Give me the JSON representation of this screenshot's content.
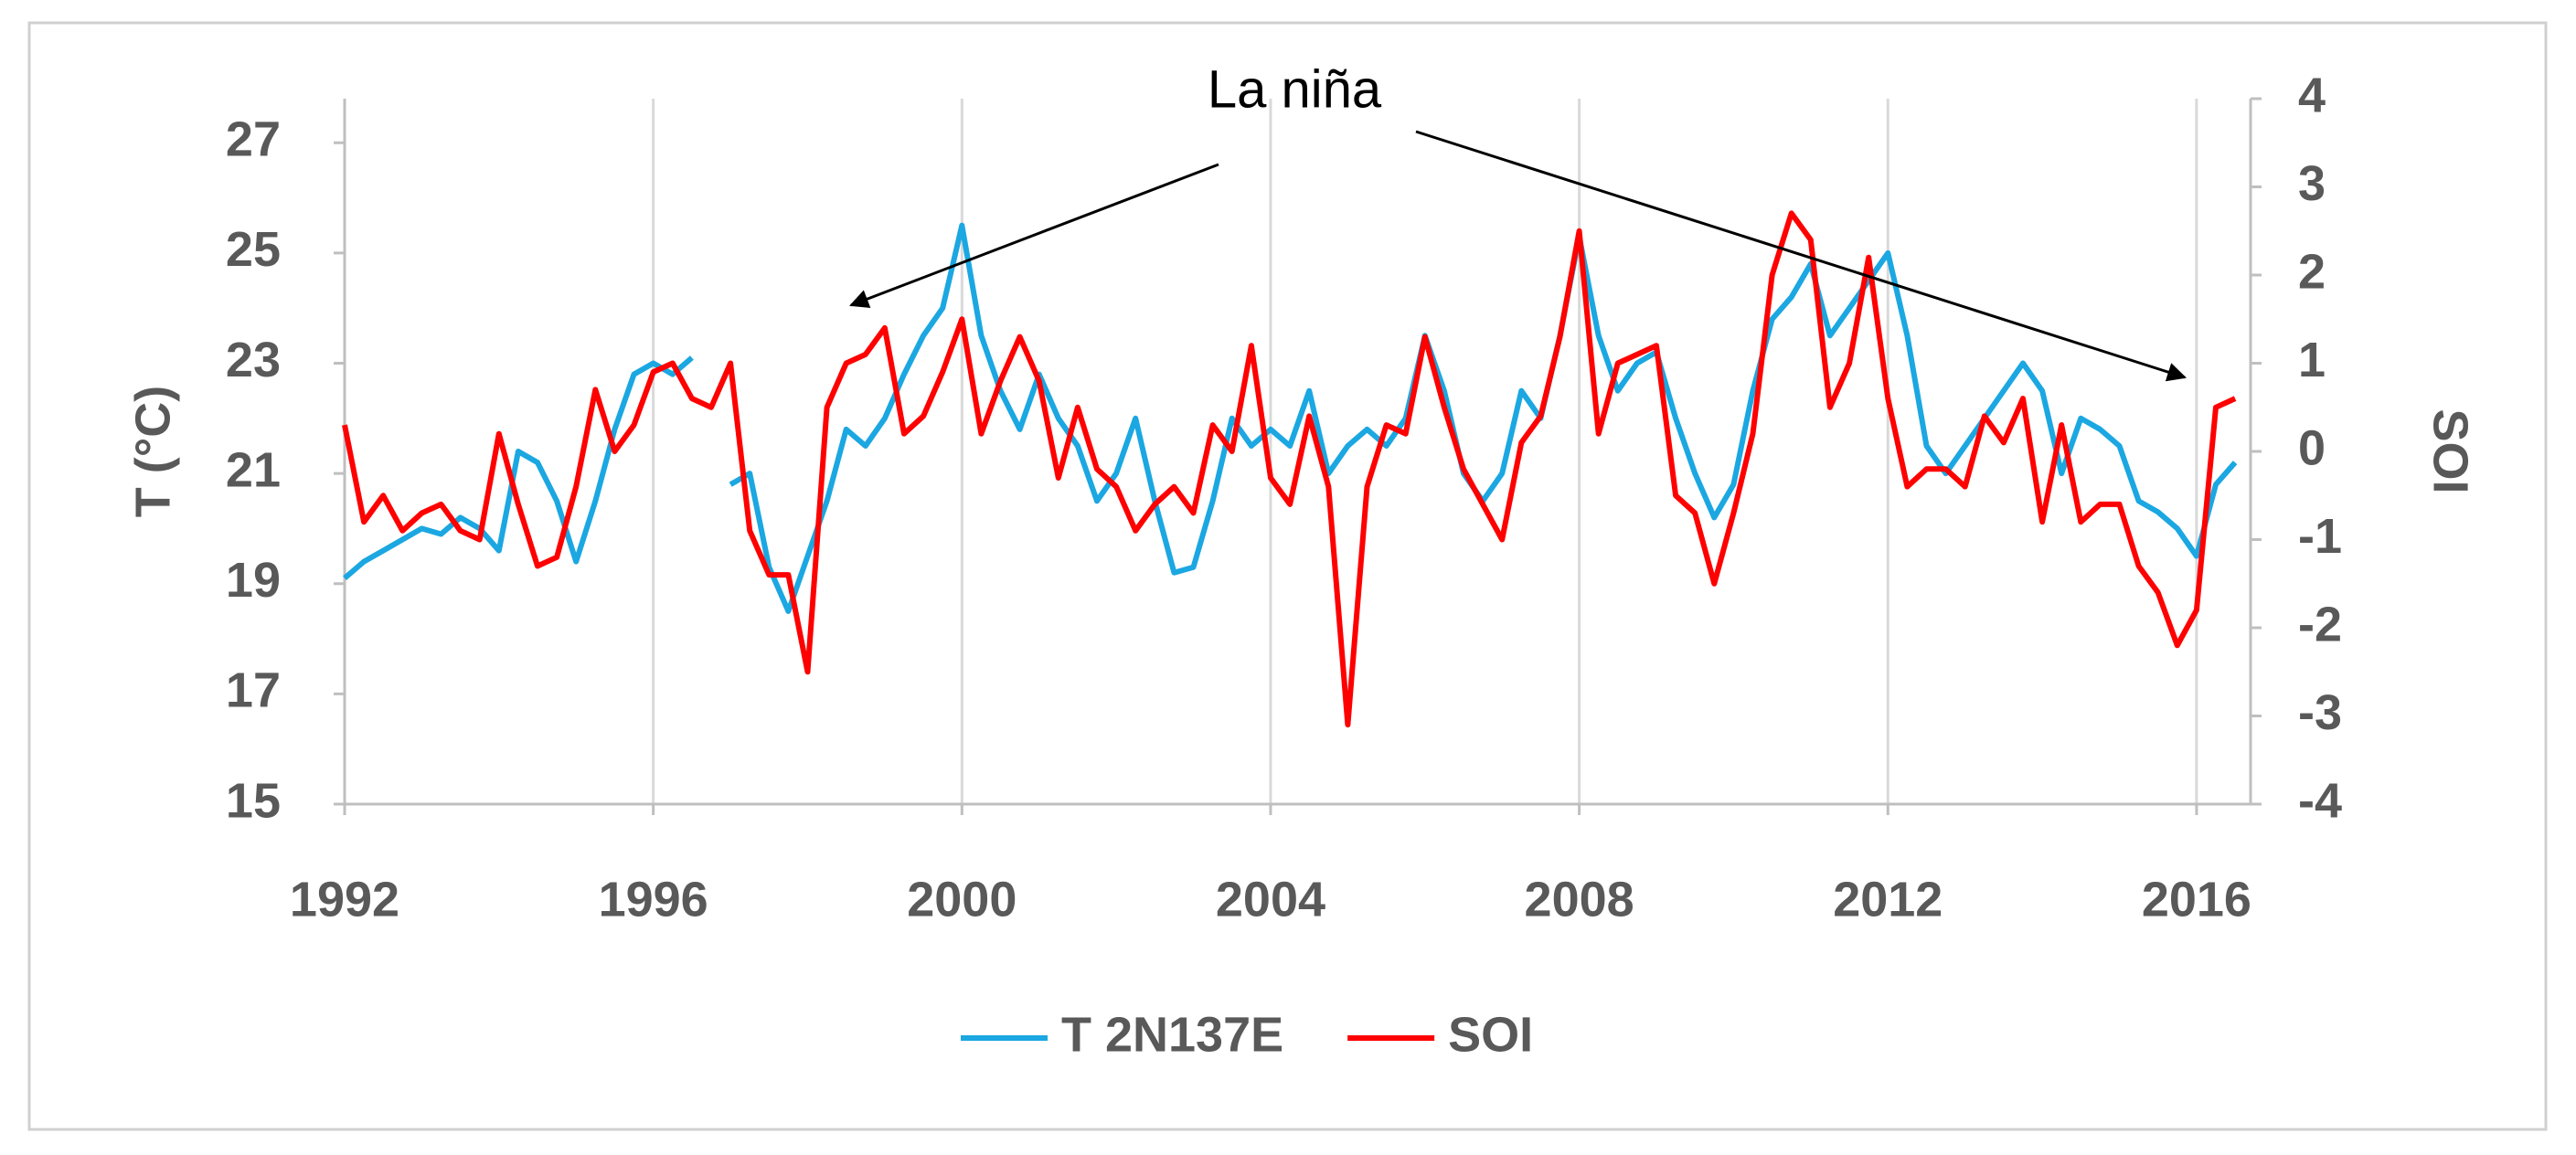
{
  "chart_data": {
    "type": "line",
    "annotation": "La niña",
    "y_label": "T (°C)",
    "y2_label": "SOI",
    "x": [
      1992,
      1992.25,
      1992.5,
      1992.75,
      1993,
      1993.25,
      1993.5,
      1993.75,
      1994,
      1994.25,
      1994.5,
      1994.75,
      1995,
      1995.25,
      1995.5,
      1995.75,
      1996,
      1996.25,
      1996.5,
      1996.75,
      1997,
      1997.25,
      1997.5,
      1997.75,
      1998,
      1998.25,
      1998.5,
      1998.75,
      1999,
      1999.25,
      1999.5,
      1999.75,
      2000,
      2000.25,
      2000.5,
      2000.75,
      2001,
      2001.25,
      2001.5,
      2001.75,
      2002,
      2002.25,
      2002.5,
      2002.75,
      2003,
      2003.25,
      2003.5,
      2003.75,
      2004,
      2004.25,
      2004.5,
      2004.75,
      2005,
      2005.25,
      2005.5,
      2005.75,
      2006,
      2006.25,
      2006.5,
      2006.75,
      2007,
      2007.25,
      2007.5,
      2007.75,
      2008,
      2008.25,
      2008.5,
      2008.75,
      2009,
      2009.25,
      2009.5,
      2009.75,
      2010,
      2010.25,
      2010.5,
      2010.75,
      2011,
      2011.25,
      2011.5,
      2011.75,
      2012,
      2012.25,
      2012.5,
      2012.75,
      2013,
      2013.25,
      2013.5,
      2013.75,
      2014,
      2014.25,
      2014.5,
      2014.75,
      2015,
      2015.25,
      2015.5,
      2015.75,
      2016,
      2016.25,
      2016.5
    ],
    "series": [
      {
        "name": "T 2N137E",
        "color": "#1ba7e1",
        "axis": "y",
        "values": [
          19.1,
          19.4,
          19.6,
          19.8,
          20.0,
          19.9,
          20.2,
          20.0,
          19.6,
          21.4,
          21.2,
          20.5,
          19.4,
          20.5,
          21.8,
          22.8,
          23.0,
          22.8,
          23.1,
          null,
          20.8,
          21.0,
          19.3,
          18.5,
          19.5,
          20.5,
          21.8,
          21.5,
          22.0,
          22.8,
          23.5,
          24.0,
          25.5,
          23.5,
          22.5,
          21.8,
          22.8,
          22.0,
          21.5,
          20.5,
          21.0,
          22.0,
          20.5,
          19.2,
          19.3,
          20.5,
          22.0,
          21.5,
          21.8,
          21.5,
          22.5,
          21.0,
          21.5,
          21.8,
          21.5,
          22.0,
          23.5,
          22.5,
          21.0,
          20.5,
          21.0,
          22.5,
          22.0,
          23.5,
          25.3,
          23.5,
          22.5,
          23.0,
          23.2,
          22.0,
          21.0,
          20.2,
          20.8,
          22.5,
          23.8,
          24.2,
          24.8,
          23.5,
          24.0,
          24.5,
          25.0,
          23.5,
          21.5,
          21.0,
          21.5,
          22.0,
          22.5,
          23.0,
          22.5,
          21.0,
          22.0,
          21.8,
          21.5,
          20.5,
          20.3,
          20.0,
          19.5,
          20.8,
          21.2
        ]
      },
      {
        "name": "SOI",
        "color": "#ff0000",
        "axis": "y2",
        "values": [
          0.3,
          -0.8,
          -0.5,
          -0.9,
          -0.7,
          -0.6,
          -0.9,
          -1.0,
          0.2,
          -0.6,
          -1.3,
          -1.2,
          -0.4,
          0.7,
          0.0,
          0.3,
          0.9,
          1.0,
          0.6,
          0.5,
          1.0,
          -0.9,
          -1.4,
          -1.4,
          -2.5,
          0.5,
          1.0,
          1.1,
          1.4,
          0.2,
          0.4,
          0.9,
          1.5,
          0.2,
          0.8,
          1.3,
          0.8,
          -0.3,
          0.5,
          -0.2,
          -0.4,
          -0.9,
          -0.6,
          -0.4,
          -0.7,
          0.3,
          0.0,
          1.2,
          -0.3,
          -0.6,
          0.4,
          -0.4,
          -3.1,
          -0.4,
          0.3,
          0.2,
          1.3,
          0.5,
          -0.2,
          -0.6,
          -1.0,
          0.1,
          0.4,
          1.3,
          2.5,
          0.2,
          1.0,
          1.1,
          1.2,
          -0.5,
          -0.7,
          -1.5,
          -0.7,
          0.2,
          2.0,
          2.7,
          2.4,
          0.5,
          1.0,
          2.2,
          0.6,
          -0.4,
          -0.2,
          -0.2,
          -0.4,
          0.4,
          0.1,
          0.6,
          -0.8,
          0.3,
          -0.8,
          -0.6,
          -0.6,
          -1.3,
          -1.6,
          -2.2,
          -1.8,
          0.5,
          0.6
        ]
      }
    ],
    "xlim": [
      1992,
      2016.7
    ],
    "xticks": [
      1992,
      1996,
      2000,
      2004,
      2008,
      2012,
      2016
    ],
    "ylim": [
      15,
      27.8
    ],
    "yticks": [
      15,
      17,
      19,
      21,
      23,
      25,
      27
    ],
    "y2lim": [
      -4,
      4
    ],
    "y2ticks": [
      -4,
      -3,
      -2,
      -1,
      0,
      1,
      2,
      3,
      4
    ],
    "grid": "x",
    "legend": "bottom"
  }
}
